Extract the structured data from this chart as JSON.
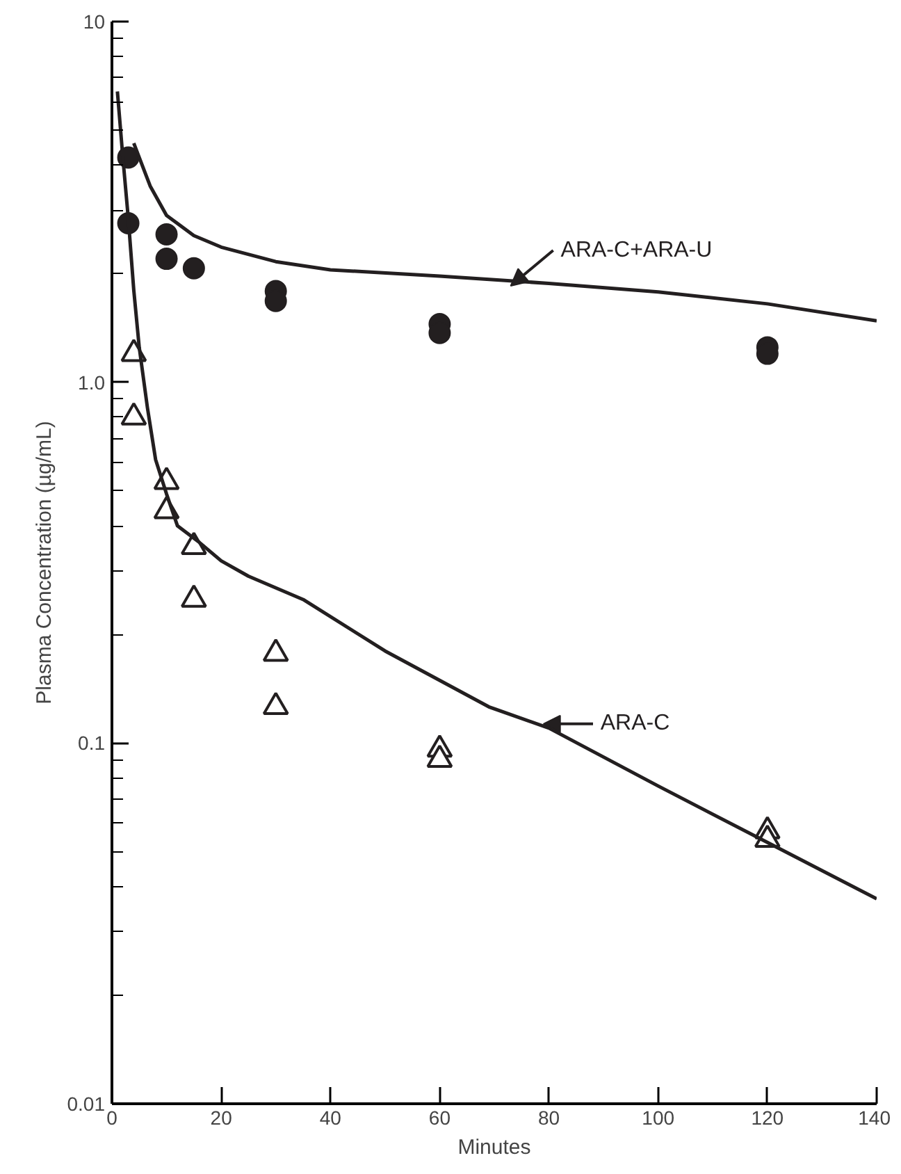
{
  "chart_data": {
    "type": "scatter",
    "xlabel": "Minutes",
    "ylabel": "Plasma Concentration (µg/mL)",
    "log": "y",
    "grid": false,
    "xlim": [
      0,
      140
    ],
    "xticks": [
      0,
      20,
      40,
      60,
      80,
      100,
      120,
      140
    ],
    "ylim": [
      0.01,
      10
    ],
    "yticks": [
      {
        "value": 0.01,
        "label": "0.01"
      },
      {
        "value": 0.02,
        "label": null
      },
      {
        "value": 0.03,
        "label": null
      },
      {
        "value": 0.04,
        "label": null
      },
      {
        "value": 0.05,
        "label": null
      },
      {
        "value": 0.06,
        "label": null
      },
      {
        "value": 0.07,
        "label": null
      },
      {
        "value": 0.08,
        "label": null
      },
      {
        "value": 0.09,
        "label": null
      },
      {
        "value": 0.1,
        "label": "0.1"
      },
      {
        "value": 0.2,
        "label": null
      },
      {
        "value": 0.3,
        "label": null
      },
      {
        "value": 0.4,
        "label": null
      },
      {
        "value": 0.5,
        "label": null
      },
      {
        "value": 0.6,
        "label": null
      },
      {
        "value": 0.7,
        "label": null
      },
      {
        "value": 0.8,
        "label": null
      },
      {
        "value": 0.9,
        "label": null
      },
      {
        "value": 1,
        "label": "1.0"
      },
      {
        "value": 2,
        "label": null
      },
      {
        "value": 3,
        "label": null
      },
      {
        "value": 4,
        "label": null
      },
      {
        "value": 5,
        "label": null
      },
      {
        "value": 6,
        "label": null
      },
      {
        "value": 7,
        "label": null
      },
      {
        "value": 8,
        "label": null
      },
      {
        "value": 9,
        "label": null
      },
      {
        "value": 10,
        "label": "10"
      }
    ],
    "series": [
      {
        "marker": "circle",
        "color": "#231f20",
        "x": [
          3,
          3,
          10,
          10,
          15,
          30,
          30,
          60,
          60,
          120,
          120
        ],
        "values": [
          4.2,
          2.76,
          2.57,
          2.2,
          2.07,
          1.79,
          1.68,
          1.45,
          1.37,
          1.25,
          1.2
        ]
      },
      {
        "marker": "triangle",
        "color": "#231f20",
        "x": [
          4,
          4,
          10,
          10,
          15,
          15,
          30,
          30,
          60,
          60,
          120,
          120
        ],
        "values": [
          1.2,
          0.8,
          0.53,
          0.44,
          0.35,
          0.25,
          0.177,
          0.126,
          0.096,
          0.09,
          0.057,
          0.054
        ]
      },
      {
        "type": "line",
        "color": "#231f20",
        "x": [
          4,
          7,
          10,
          15,
          20,
          30,
          40,
          60,
          80,
          100,
          120,
          140
        ],
        "values": [
          4.6,
          3.5,
          2.9,
          2.55,
          2.37,
          2.16,
          2.05,
          1.97,
          1.88,
          1.78,
          1.65,
          1.48
        ]
      },
      {
        "type": "line",
        "color": "#231f20",
        "x": [
          1,
          2,
          3,
          4,
          5,
          6.5,
          8,
          10,
          12,
          16,
          20,
          25,
          35,
          50,
          69,
          80,
          100,
          120,
          140
        ],
        "values": [
          6.4,
          4.2,
          2.84,
          1.8,
          1.25,
          0.85,
          0.61,
          0.49,
          0.4,
          0.36,
          0.32,
          0.29,
          0.25,
          0.18,
          0.126,
          0.11,
          0.076,
          0.053,
          0.037
        ]
      }
    ],
    "annotations": [
      {
        "text": "ARA-C+ARA-U",
        "x": 73,
        "y": 1.85
      },
      {
        "text": "ARA-C",
        "x": 79,
        "y": 0.113
      }
    ]
  }
}
